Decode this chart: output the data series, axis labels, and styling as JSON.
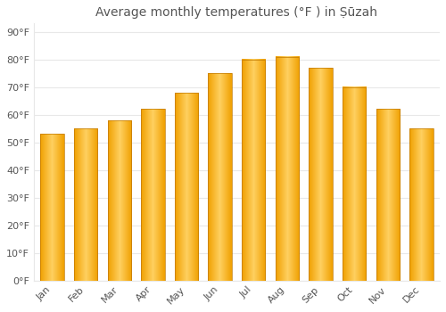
{
  "title": "Average monthly temperatures (°F ) in Ṣūzah",
  "months": [
    "Jan",
    "Feb",
    "Mar",
    "Apr",
    "May",
    "Jun",
    "Jul",
    "Aug",
    "Sep",
    "Oct",
    "Nov",
    "Dec"
  ],
  "values": [
    53,
    55,
    58,
    62,
    68,
    75,
    80,
    81,
    77,
    70,
    62,
    55
  ],
  "bar_color_light": "#FFD060",
  "bar_color_dark": "#F0A000",
  "bar_edge_color": "#C07800",
  "background_color": "#FFFFFF",
  "grid_color": "#E8E8E8",
  "yticks": [
    0,
    10,
    20,
    30,
    40,
    50,
    60,
    70,
    80,
    90
  ],
  "ylim": [
    0,
    93
  ],
  "title_fontsize": 10,
  "tick_fontsize": 8,
  "font_color": "#555555",
  "bar_width": 0.7
}
